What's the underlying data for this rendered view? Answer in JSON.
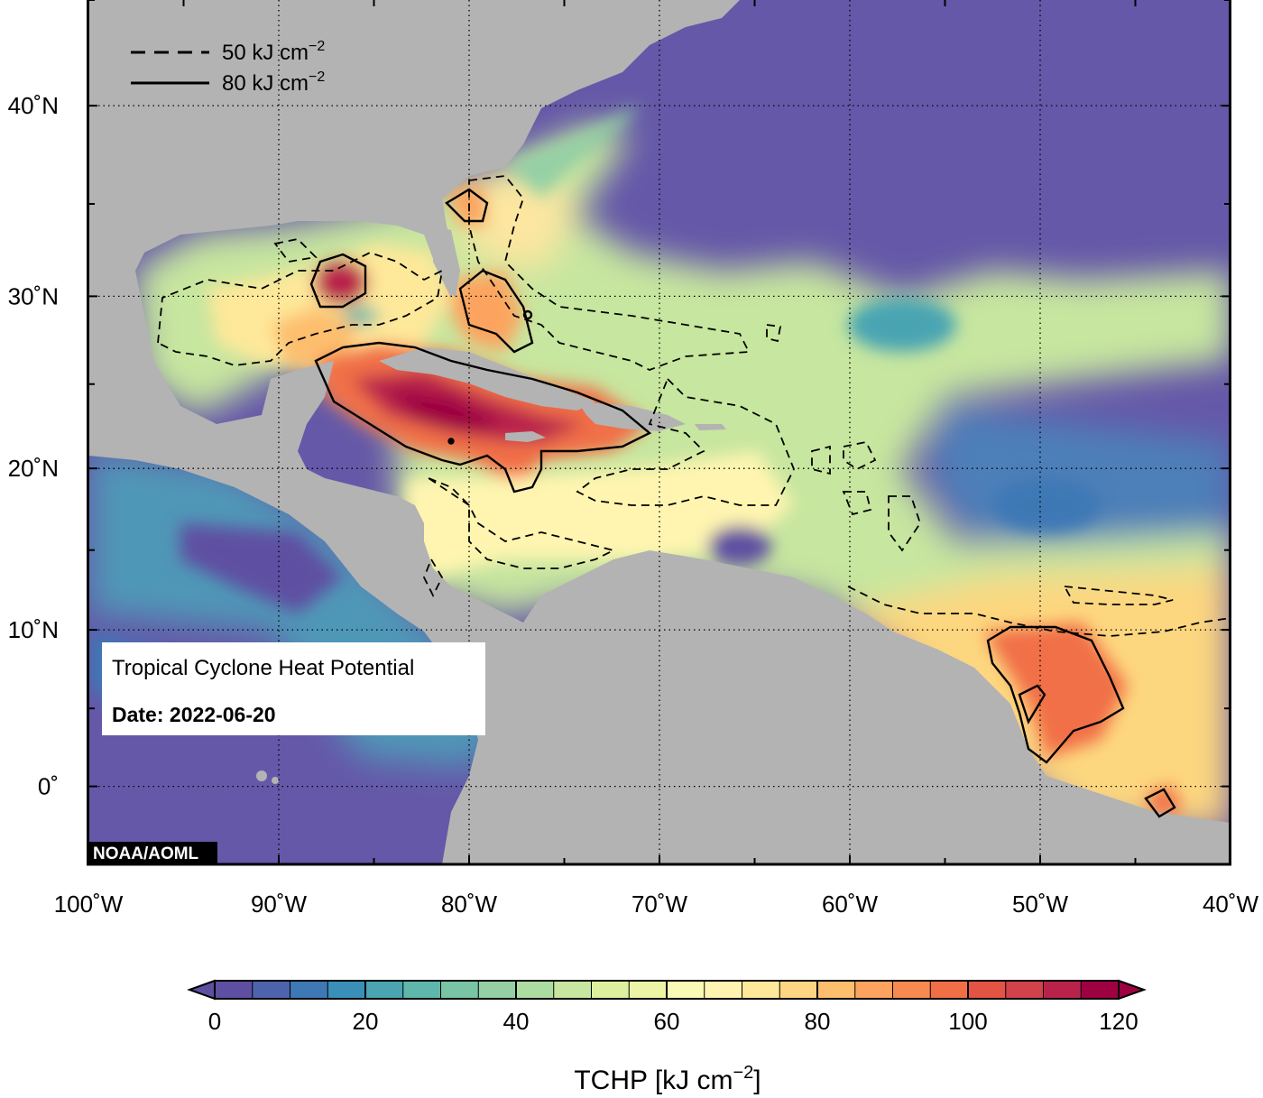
{
  "map": {
    "title": "Tropical Cyclone Heat Potential",
    "date_label": "Date:",
    "date_value": "2022-06-20",
    "credit": "NOAA/AOML",
    "lon_range": [
      -100,
      -40
    ],
    "lat_range": [
      -5,
      45
    ],
    "lon_ticks": [
      {
        "value": -100,
        "label": "100˚W"
      },
      {
        "value": -90,
        "label": "90˚W"
      },
      {
        "value": -80,
        "label": "80˚W"
      },
      {
        "value": -70,
        "label": "70˚W"
      },
      {
        "value": -60,
        "label": "60˚W"
      },
      {
        "value": -50,
        "label": "50˚W"
      },
      {
        "value": -40,
        "label": "40˚W"
      }
    ],
    "lat_ticks": [
      {
        "value": 40,
        "label": "40˚N"
      },
      {
        "value": 30,
        "label": "30˚N"
      },
      {
        "value": 20,
        "label": "20˚N"
      },
      {
        "value": 10,
        "label": "10˚N"
      },
      {
        "value": 0,
        "label": "0˚"
      }
    ],
    "grid": "dotted",
    "land_color": "#b3b3b3",
    "contour_legend": [
      {
        "style": "dashed",
        "text": "50 kJ cm",
        "sup": "−2"
      },
      {
        "style": "solid",
        "text": "80 kJ cm",
        "sup": "−2"
      }
    ]
  },
  "colorbar": {
    "title": "TCHP [kJ cm",
    "title_sup": "−2",
    "title_end": "]",
    "min": 0,
    "max": 120,
    "step": 5,
    "tick_values": [
      0,
      20,
      40,
      60,
      80,
      100,
      120
    ],
    "tick_labels": [
      "0",
      "20",
      "40",
      "60",
      "80",
      "100",
      "120"
    ],
    "colors": [
      "#5e4fa2",
      "#4d63ab",
      "#3e78b5",
      "#3a8fb8",
      "#4aa4b2",
      "#5fb6ab",
      "#78c4a4",
      "#94d0a4",
      "#addca2",
      "#c7e69f",
      "#dcf09e",
      "#ecf5a5",
      "#f8fab5",
      "#fff5b0",
      "#fee89a",
      "#fed683",
      "#fdbe6e",
      "#fca45f",
      "#f88a51",
      "#f16f47",
      "#e35445",
      "#d1424a",
      "#b9234b",
      "#9e0142"
    ]
  }
}
